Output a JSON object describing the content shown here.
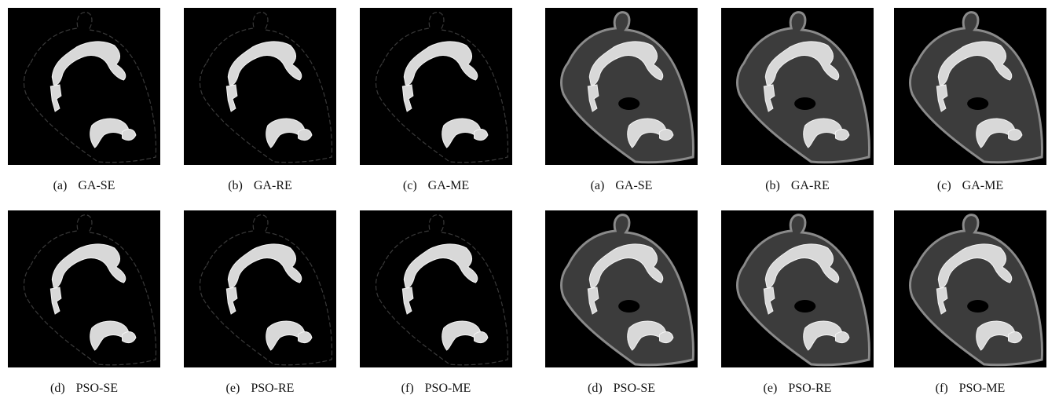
{
  "groups": [
    {
      "panels": [
        {
          "letter": "(a)",
          "name": "GA-SE"
        },
        {
          "letter": "(b)",
          "name": "GA-RE"
        },
        {
          "letter": "(c)",
          "name": "GA-ME"
        },
        {
          "letter": "(d)",
          "name": "PSO-SE"
        },
        {
          "letter": "(e)",
          "name": "PSO-RE"
        },
        {
          "letter": "(f)",
          "name": "PSO-ME"
        }
      ]
    },
    {
      "panels": [
        {
          "letter": "(a)",
          "name": "GA-SE"
        },
        {
          "letter": "(b)",
          "name": "GA-RE"
        },
        {
          "letter": "(c)",
          "name": "GA-ME"
        },
        {
          "letter": "(d)",
          "name": "PSO-SE"
        },
        {
          "letter": "(e)",
          "name": "PSO-RE"
        },
        {
          "letter": "(f)",
          "name": "PSO-ME"
        }
      ]
    }
  ]
}
